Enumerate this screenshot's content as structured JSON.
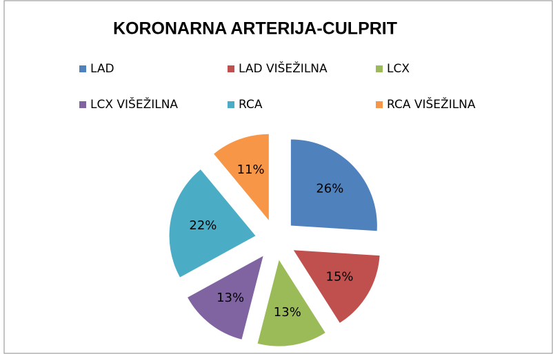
{
  "chart_data": {
    "type": "pie",
    "title": "KORONARNA ARTERIJA-CULPRIT",
    "categories": [
      "LAD",
      "LAD VIŠEŽILNA",
      "LCX",
      "LCX VIŠEŽILNA",
      "RCA",
      "RCA VIŠEŽILNA"
    ],
    "values": [
      26,
      15,
      13,
      13,
      22,
      11
    ],
    "value_labels": [
      "26%",
      "15%",
      "13%",
      "13%",
      "22%",
      "11%"
    ],
    "colors": [
      "#4f81bd",
      "#c0504d",
      "#9bbb59",
      "#8064a2",
      "#4bacc6",
      "#f79646"
    ],
    "legend": "top"
  }
}
